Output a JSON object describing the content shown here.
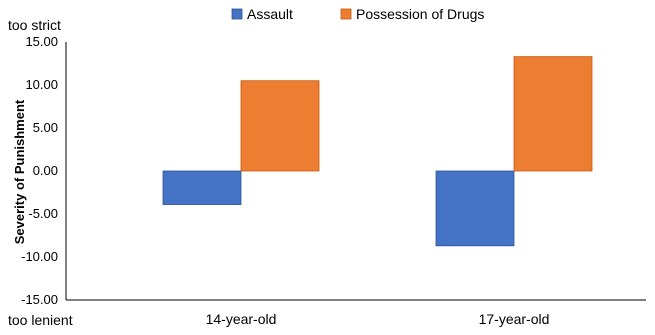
{
  "chart_data": {
    "type": "bar",
    "categories": [
      "14-year-old",
      "17-year-old"
    ],
    "series": [
      {
        "name": "Assault",
        "color": "#4472C4",
        "values": [
          -3.9,
          -8.7
        ]
      },
      {
        "name": "Possession of Drugs",
        "color": "#ED7D31",
        "values": [
          10.5,
          13.3
        ]
      }
    ],
    "ylabel": "Severity of Punishment",
    "ylim": [
      -15,
      15
    ],
    "yticks": [
      "15.00",
      "10.00",
      "5.00",
      "0.00",
      "-5.00",
      "-10.00",
      "-15.00"
    ],
    "top_annotation": "too strict",
    "bottom_annotation": "too lenient",
    "legend_position": "top",
    "grid": false
  }
}
